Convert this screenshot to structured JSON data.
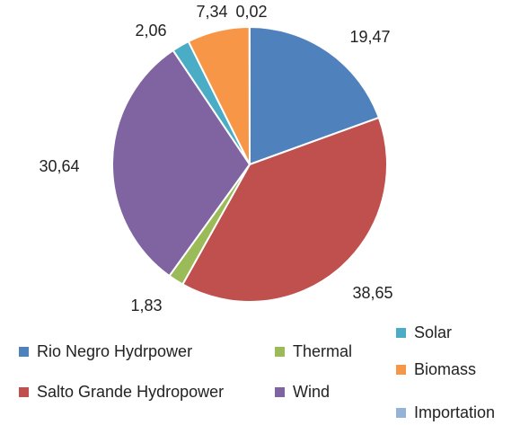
{
  "chart_data": {
    "type": "pie",
    "title": "",
    "start_angle_deg": 0,
    "direction": "clockwise",
    "slices": [
      {
        "name": "Rio Negro Hydrpower",
        "value": 19.47,
        "label": "19,47",
        "color": "#4F81BD"
      },
      {
        "name": "Salto Grande Hydropower",
        "value": 38.65,
        "label": "38,65",
        "color": "#C0504D"
      },
      {
        "name": "Thermal",
        "value": 1.83,
        "label": "1,83",
        "color": "#9BBB59"
      },
      {
        "name": "Wind",
        "value": 30.64,
        "label": "30,64",
        "color": "#8064A2"
      },
      {
        "name": "Solar",
        "value": 2.06,
        "label": "2,06",
        "color": "#4BACC6"
      },
      {
        "name": "Biomass",
        "value": 7.34,
        "label": "7,34",
        "color": "#F79646"
      },
      {
        "name": "Importation",
        "value": 0.02,
        "label": "0,02",
        "color": "#95B3D7"
      }
    ],
    "legend": [
      {
        "name": "Rio Negro Hydrpower",
        "color": "#4F81BD"
      },
      {
        "name": "Thermal",
        "color": "#9BBB59"
      },
      {
        "name": "Solar",
        "color": "#4BACC6"
      },
      {
        "name": "Biomass",
        "color": "#F79646"
      },
      {
        "name": "Salto Grande Hydropower",
        "color": "#C0504D"
      },
      {
        "name": "Wind",
        "color": "#8064A2"
      },
      {
        "name": "Importation",
        "color": "#95B3D7"
      }
    ]
  }
}
